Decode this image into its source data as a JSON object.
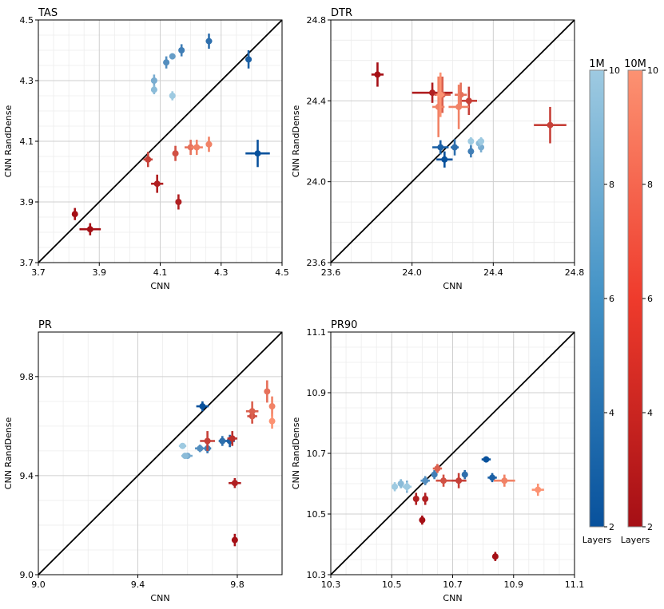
{
  "figure_title": "",
  "colors": {
    "blue_dark": "#08519c",
    "blue_light": "#9ecae1",
    "red_dark": "#a50f15",
    "red_light": "#fc9272",
    "grid": "#d9d9d9"
  },
  "colorbars": [
    {
      "title": "1M",
      "label": "Layers",
      "min": 2,
      "max": 10,
      "ticks": [
        "2",
        "4",
        "6",
        "8",
        "10"
      ],
      "color_low": "#08519c",
      "color_high": "#9ecae1"
    },
    {
      "title": "10M",
      "label": "Layers",
      "min": 2,
      "max": 10,
      "ticks": [
        "2",
        "4",
        "6",
        "8",
        "10"
      ],
      "color_low": "#a50f15",
      "color_high": "#fc9272"
    }
  ],
  "chart_data": [
    {
      "type": "scatter",
      "title": "TAS",
      "xlabel": "CNN",
      "ylabel": "CNN RandDense",
      "xlim": [
        3.7,
        4.5
      ],
      "ylim": [
        3.7,
        4.5
      ],
      "xticks": [
        "3.7",
        "3.9",
        "4.1",
        "4.3",
        "4.5"
      ],
      "yticks": [
        "3.7",
        "3.9",
        "4.1",
        "4.3",
        "4.5"
      ],
      "series": [
        {
          "name": "1M",
          "points": [
            {
              "x": 4.42,
              "y": 4.06,
              "xerr": 0.04,
              "yerr": 0.045,
              "layers": 2
            },
            {
              "x": 4.39,
              "y": 4.37,
              "xerr": 0.01,
              "yerr": 0.03,
              "layers": 3
            },
            {
              "x": 4.26,
              "y": 4.43,
              "xerr": 0.01,
              "yerr": 0.025,
              "layers": 4
            },
            {
              "x": 4.17,
              "y": 4.4,
              "xerr": 0.01,
              "yerr": 0.02,
              "layers": 5
            },
            {
              "x": 4.12,
              "y": 4.36,
              "xerr": 0.01,
              "yerr": 0.02,
              "layers": 6
            },
            {
              "x": 4.14,
              "y": 4.38,
              "xerr": 0.01,
              "yerr": 0.01,
              "layers": 7
            },
            {
              "x": 4.08,
              "y": 4.3,
              "xerr": 0.01,
              "yerr": 0.02,
              "layers": 8
            },
            {
              "x": 4.08,
              "y": 4.27,
              "xerr": 0.01,
              "yerr": 0.015,
              "layers": 9
            },
            {
              "x": 4.14,
              "y": 4.25,
              "xerr": 0.01,
              "yerr": 0.015,
              "layers": 10
            }
          ]
        },
        {
          "name": "10M",
          "points": [
            {
              "x": 3.87,
              "y": 3.81,
              "xerr": 0.035,
              "yerr": 0.02,
              "layers": 2
            },
            {
              "x": 3.82,
              "y": 3.86,
              "xerr": 0.005,
              "yerr": 0.02,
              "layers": 2
            },
            {
              "x": 4.09,
              "y": 3.96,
              "xerr": 0.02,
              "yerr": 0.03,
              "layers": 3
            },
            {
              "x": 4.16,
              "y": 3.9,
              "xerr": 0.005,
              "yerr": 0.025,
              "layers": 3
            },
            {
              "x": 4.06,
              "y": 4.04,
              "xerr": 0.015,
              "yerr": 0.025,
              "layers": 5
            },
            {
              "x": 4.15,
              "y": 4.06,
              "xerr": 0.01,
              "yerr": 0.025,
              "layers": 6
            },
            {
              "x": 4.2,
              "y": 4.08,
              "xerr": 0.02,
              "yerr": 0.025,
              "layers": 8
            },
            {
              "x": 4.22,
              "y": 4.08,
              "xerr": 0.02,
              "yerr": 0.025,
              "layers": 9
            },
            {
              "x": 4.26,
              "y": 4.09,
              "xerr": 0.01,
              "yerr": 0.025,
              "layers": 9
            }
          ]
        }
      ]
    },
    {
      "type": "scatter",
      "title": "DTR",
      "xlabel": "CNN",
      "ylabel": "CNN RandDense",
      "xlim": [
        23.6,
        24.8
      ],
      "ylim": [
        23.6,
        24.8
      ],
      "xticks": [
        "23.6",
        "24.0",
        "24.4",
        "24.8"
      ],
      "yticks": [
        "23.6",
        "24.0",
        "24.4",
        "24.8"
      ],
      "series": [
        {
          "name": "1M",
          "points": [
            {
              "x": 24.16,
              "y": 24.11,
              "xerr": 0.04,
              "yerr": 0.04,
              "layers": 2
            },
            {
              "x": 24.14,
              "y": 24.17,
              "xerr": 0.04,
              "yerr": 0.035,
              "layers": 3
            },
            {
              "x": 24.21,
              "y": 24.17,
              "xerr": 0.02,
              "yerr": 0.04,
              "layers": 4
            },
            {
              "x": 24.29,
              "y": 24.15,
              "xerr": 0.01,
              "yerr": 0.03,
              "layers": 5
            },
            {
              "x": 24.34,
              "y": 24.17,
              "xerr": 0.015,
              "yerr": 0.025,
              "layers": 8
            },
            {
              "x": 24.33,
              "y": 24.19,
              "xerr": 0.015,
              "yerr": 0.02,
              "layers": 9
            },
            {
              "x": 24.34,
              "y": 24.2,
              "xerr": 0.01,
              "yerr": 0.02,
              "layers": 10
            },
            {
              "x": 24.29,
              "y": 24.2,
              "xerr": 0.01,
              "yerr": 0.02,
              "layers": 10
            }
          ]
        },
        {
          "name": "10M",
          "points": [
            {
              "x": 23.83,
              "y": 24.53,
              "xerr": 0.03,
              "yerr": 0.06,
              "layers": 2
            },
            {
              "x": 24.1,
              "y": 24.44,
              "xerr": 0.1,
              "yerr": 0.05,
              "layers": 3
            },
            {
              "x": 24.68,
              "y": 24.28,
              "xerr": 0.08,
              "yerr": 0.09,
              "layers": 5
            },
            {
              "x": 24.28,
              "y": 24.4,
              "xerr": 0.04,
              "yerr": 0.07,
              "layers": 5
            },
            {
              "x": 24.15,
              "y": 24.43,
              "xerr": 0.04,
              "yerr": 0.09,
              "layers": 7
            },
            {
              "x": 24.13,
              "y": 24.37,
              "xerr": 0.03,
              "yerr": 0.15,
              "layers": 9
            },
            {
              "x": 24.24,
              "y": 24.43,
              "xerr": 0.03,
              "yerr": 0.06,
              "layers": 8
            },
            {
              "x": 24.23,
              "y": 24.37,
              "xerr": 0.05,
              "yerr": 0.11,
              "layers": 9
            },
            {
              "x": 24.14,
              "y": 24.43,
              "xerr": 0.02,
              "yerr": 0.11,
              "layers": 10
            }
          ]
        }
      ]
    },
    {
      "type": "scatter",
      "title": "PR",
      "xlabel": "CNN",
      "ylabel": "CNN RandDense",
      "xlim": [
        9.0,
        9.98
      ],
      "ylim": [
        9.0,
        9.98
      ],
      "xticks": [
        "9.0",
        "9.4",
        "9.8"
      ],
      "yticks": [
        "9.0",
        "9.4",
        "9.8"
      ],
      "series": [
        {
          "name": "1M",
          "points": [
            {
              "x": 9.66,
              "y": 9.68,
              "xerr": 0.025,
              "yerr": 0.02,
              "layers": 2
            },
            {
              "x": 9.77,
              "y": 9.54,
              "xerr": 0.02,
              "yerr": 0.025,
              "layers": 3
            },
            {
              "x": 9.74,
              "y": 9.54,
              "xerr": 0.015,
              "yerr": 0.02,
              "layers": 4
            },
            {
              "x": 9.68,
              "y": 9.51,
              "xerr": 0.015,
              "yerr": 0.02,
              "layers": 5
            },
            {
              "x": 9.65,
              "y": 9.51,
              "xerr": 0.02,
              "yerr": 0.015,
              "layers": 6
            },
            {
              "x": 9.6,
              "y": 9.48,
              "xerr": 0.02,
              "yerr": 0.01,
              "layers": 8
            },
            {
              "x": 9.59,
              "y": 9.48,
              "xerr": 0.015,
              "yerr": 0.01,
              "layers": 9
            },
            {
              "x": 9.58,
              "y": 9.52,
              "xerr": 0.015,
              "yerr": 0.01,
              "layers": 10
            }
          ]
        },
        {
          "name": "10M",
          "points": [
            {
              "x": 9.79,
              "y": 9.14,
              "xerr": 0.005,
              "yerr": 0.025,
              "layers": 2
            },
            {
              "x": 9.79,
              "y": 9.37,
              "xerr": 0.025,
              "yerr": 0.02,
              "layers": 3
            },
            {
              "x": 9.78,
              "y": 9.55,
              "xerr": 0.02,
              "yerr": 0.03,
              "layers": 4
            },
            {
              "x": 9.68,
              "y": 9.54,
              "xerr": 0.03,
              "yerr": 0.04,
              "layers": 5
            },
            {
              "x": 9.86,
              "y": 9.64,
              "xerr": 0.02,
              "yerr": 0.03,
              "layers": 6
            },
            {
              "x": 9.86,
              "y": 9.66,
              "xerr": 0.025,
              "yerr": 0.04,
              "layers": 7
            },
            {
              "x": 9.92,
              "y": 9.74,
              "xerr": 0.01,
              "yerr": 0.045,
              "layers": 8
            },
            {
              "x": 9.94,
              "y": 9.68,
              "xerr": 0.01,
              "yerr": 0.04,
              "layers": 9
            },
            {
              "x": 9.94,
              "y": 9.62,
              "xerr": 0.01,
              "yerr": 0.03,
              "layers": 10
            }
          ]
        }
      ]
    },
    {
      "type": "scatter",
      "title": "PR90",
      "xlabel": "CNN",
      "ylabel": "CNN RandDense",
      "xlim": [
        10.3,
        11.1
      ],
      "ylim": [
        10.3,
        11.1
      ],
      "xticks": [
        "10.3",
        "10.5",
        "10.7",
        "10.9",
        "11.1"
      ],
      "yticks": [
        "10.3",
        "10.5",
        "10.7",
        "10.9",
        "11.1"
      ],
      "series": [
        {
          "name": "1M",
          "points": [
            {
              "x": 10.81,
              "y": 10.68,
              "xerr": 0.015,
              "yerr": 0.01,
              "layers": 2
            },
            {
              "x": 10.83,
              "y": 10.62,
              "xerr": 0.015,
              "yerr": 0.015,
              "layers": 3
            },
            {
              "x": 10.74,
              "y": 10.63,
              "xerr": 0.01,
              "yerr": 0.015,
              "layers": 4
            },
            {
              "x": 10.64,
              "y": 10.63,
              "xerr": 0.01,
              "yerr": 0.015,
              "layers": 5
            },
            {
              "x": 10.61,
              "y": 10.61,
              "xerr": 0.015,
              "yerr": 0.015,
              "layers": 6
            },
            {
              "x": 10.55,
              "y": 10.59,
              "xerr": 0.015,
              "yerr": 0.02,
              "layers": 8
            },
            {
              "x": 10.53,
              "y": 10.6,
              "xerr": 0.01,
              "yerr": 0.015,
              "layers": 9
            },
            {
              "x": 10.55,
              "y": 10.59,
              "xerr": 0.015,
              "yerr": 0.015,
              "layers": 10
            },
            {
              "x": 10.51,
              "y": 10.59,
              "xerr": 0.01,
              "yerr": 0.015,
              "layers": 10
            }
          ]
        },
        {
          "name": "10M",
          "points": [
            {
              "x": 10.84,
              "y": 10.36,
              "xerr": 0.005,
              "yerr": 0.015,
              "layers": 2
            },
            {
              "x": 10.6,
              "y": 10.48,
              "xerr": 0.005,
              "yerr": 0.015,
              "layers": 2
            },
            {
              "x": 10.58,
              "y": 10.55,
              "xerr": 0.005,
              "yerr": 0.02,
              "layers": 3
            },
            {
              "x": 10.61,
              "y": 10.55,
              "xerr": 0.005,
              "yerr": 0.02,
              "layers": 3
            },
            {
              "x": 10.72,
              "y": 10.61,
              "xerr": 0.025,
              "yerr": 0.025,
              "layers": 5
            },
            {
              "x": 10.67,
              "y": 10.61,
              "xerr": 0.025,
              "yerr": 0.02,
              "layers": 6
            },
            {
              "x": 10.65,
              "y": 10.65,
              "xerr": 0.015,
              "yerr": 0.015,
              "layers": 7
            },
            {
              "x": 10.87,
              "y": 10.61,
              "xerr": 0.035,
              "yerr": 0.02,
              "layers": 9
            },
            {
              "x": 10.98,
              "y": 10.58,
              "xerr": 0.02,
              "yerr": 0.02,
              "layers": 10
            }
          ]
        }
      ]
    }
  ]
}
